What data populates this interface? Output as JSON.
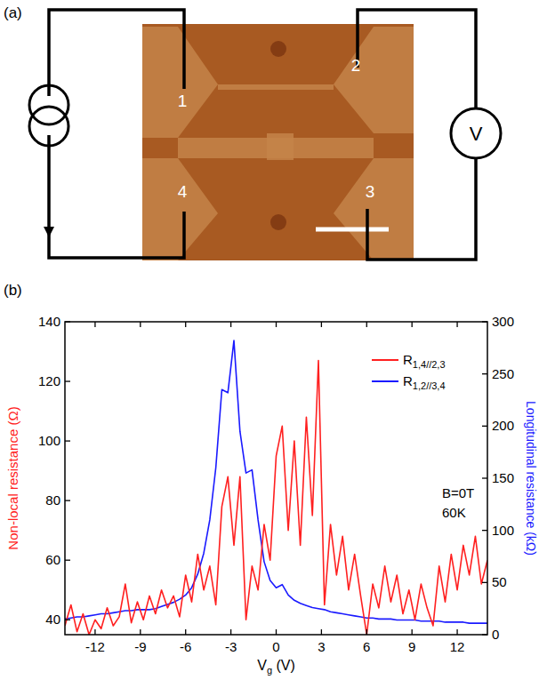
{
  "chart_data": {
    "type": "line",
    "panel_label": "(b)",
    "x": [
      -14.0,
      -13.6,
      -13.2,
      -12.8,
      -12.4,
      -12.0,
      -11.6,
      -11.2,
      -10.8,
      -10.4,
      -10.0,
      -9.6,
      -9.2,
      -8.8,
      -8.4,
      -8.0,
      -7.6,
      -7.2,
      -6.8,
      -6.4,
      -6.0,
      -5.6,
      -5.2,
      -4.8,
      -4.4,
      -4.0,
      -3.6,
      -3.2,
      -2.8,
      -2.4,
      -2.0,
      -1.6,
      -1.2,
      -0.8,
      -0.4,
      0.0,
      0.4,
      0.8,
      1.2,
      1.6,
      2.0,
      2.4,
      2.8,
      3.2,
      3.6,
      4.0,
      4.4,
      4.8,
      5.2,
      5.6,
      6.0,
      6.4,
      6.8,
      7.2,
      7.6,
      8.0,
      8.4,
      8.8,
      9.2,
      9.6,
      10.0,
      10.4,
      10.8,
      11.2,
      11.6,
      12.0,
      12.4,
      12.8,
      13.2,
      13.6,
      14.0
    ],
    "xlim": [
      -14,
      14
    ],
    "xticks": [
      -12,
      -9,
      -6,
      -3,
      0,
      3,
      6,
      9,
      12
    ],
    "ylim": [
      35,
      140
    ],
    "yticks": [
      40,
      60,
      80,
      100,
      120,
      140
    ],
    "y2lim": [
      0,
      300
    ],
    "y2ticks": [
      0,
      50,
      100,
      150,
      200,
      250,
      300
    ],
    "xlabel": "Vg (V)",
    "ylabel": "Non-local resistance (Ω)",
    "y2label": "Longitudinal resistance (kΩ)",
    "annotations": [
      "B=0T",
      "60K"
    ],
    "legend": "upper right",
    "series": [
      {
        "name": "R1,4//2,3",
        "color": "#ff2020",
        "values": [
          38,
          45,
          36,
          42,
          35,
          40,
          37,
          44,
          38,
          41,
          52,
          39,
          46,
          40,
          48,
          42,
          50,
          44,
          48,
          41,
          55,
          46,
          62,
          50,
          58,
          45,
          78,
          88,
          65,
          88,
          40,
          58,
          50,
          72,
          60,
          95,
          105,
          70,
          100,
          65,
          108,
          75,
          127,
          45,
          72,
          55,
          68,
          50,
          62,
          48,
          35,
          52,
          44,
          58,
          46,
          55,
          42,
          50,
          40,
          52,
          44,
          38,
          58,
          46,
          62,
          50,
          65,
          55,
          68,
          52,
          60
        ]
      },
      {
        "name": "R1,2//3,4",
        "color": "#1a1aff",
        "axis": "y2",
        "values": [
          15,
          16,
          17,
          17,
          18,
          19,
          20,
          20,
          21,
          22,
          23,
          23,
          24,
          24,
          24,
          25,
          27,
          29,
          31,
          34,
          38,
          45,
          58,
          78,
          110,
          160,
          235,
          232,
          282,
          195,
          155,
          158,
          110,
          70,
          52,
          45,
          48,
          38,
          33,
          30,
          28,
          26,
          25,
          24,
          22,
          21,
          20,
          19,
          18,
          17,
          16,
          16,
          15,
          15,
          15,
          14,
          14,
          14,
          14,
          13,
          13,
          13,
          13,
          12,
          12,
          12,
          12,
          11,
          11,
          11,
          11
        ]
      }
    ]
  },
  "panel_a": {
    "label": "(a)",
    "electrodes": [
      "1",
      "2",
      "3",
      "4"
    ],
    "meter": "V"
  }
}
